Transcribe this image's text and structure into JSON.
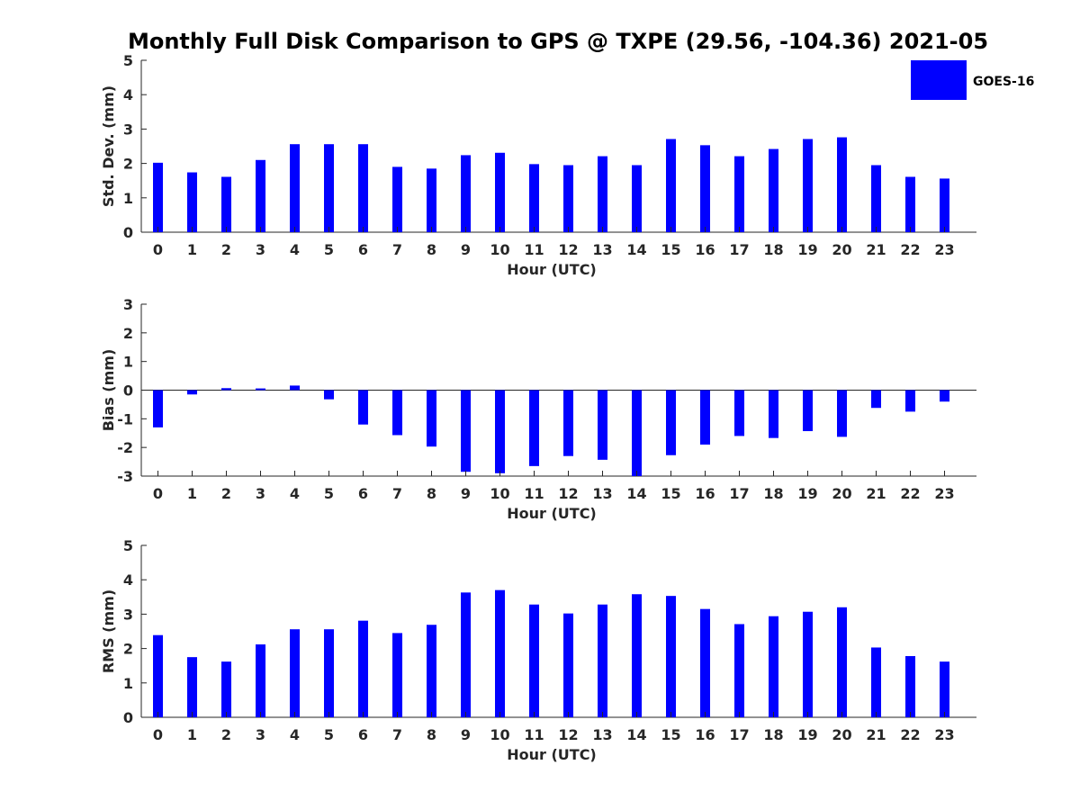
{
  "title": "Monthly Full Disk Comparison to GPS @ TXPE (29.56, -104.36) 2021-05",
  "legend": {
    "label": "GOES-16",
    "color": "#0000ff",
    "position": "top-right"
  },
  "chart_data": [
    {
      "type": "bar",
      "ylabel": "Std. Dev. (mm)",
      "xlabel": "Hour (UTC)",
      "ylim": [
        0,
        5
      ],
      "yticks": [
        0,
        1,
        2,
        3,
        4,
        5
      ],
      "categories": [
        "0",
        "1",
        "2",
        "3",
        "4",
        "5",
        "6",
        "7",
        "8",
        "9",
        "10",
        "11",
        "12",
        "13",
        "14",
        "15",
        "16",
        "17",
        "18",
        "19",
        "20",
        "21",
        "22",
        "23"
      ],
      "series": [
        {
          "name": "GOES-16",
          "color": "#0000ff",
          "values": [
            2.02,
            1.74,
            1.61,
            2.1,
            2.56,
            2.56,
            2.56,
            1.9,
            1.85,
            2.24,
            2.31,
            1.98,
            1.95,
            2.21,
            1.95,
            2.71,
            2.53,
            2.21,
            2.42,
            2.71,
            2.76,
            1.95,
            1.61,
            1.56
          ]
        }
      ],
      "grid": false,
      "legend": true
    },
    {
      "type": "bar",
      "ylabel": "Bias (mm)",
      "xlabel": "Hour (UTC)",
      "ylim": [
        -3,
        3
      ],
      "yticks": [
        -3,
        -2,
        -1,
        0,
        1,
        2,
        3
      ],
      "categories": [
        "0",
        "1",
        "2",
        "3",
        "4",
        "5",
        "6",
        "7",
        "8",
        "9",
        "10",
        "11",
        "12",
        "13",
        "14",
        "15",
        "16",
        "17",
        "18",
        "19",
        "20",
        "21",
        "22",
        "23"
      ],
      "series": [
        {
          "name": "GOES-16",
          "color": "#0000ff",
          "values": [
            -1.3,
            -0.15,
            0.07,
            0.06,
            0.16,
            -0.32,
            -1.2,
            -1.57,
            -1.97,
            -2.85,
            -2.9,
            -2.65,
            -2.3,
            -2.43,
            -3.0,
            -2.27,
            -1.9,
            -1.6,
            -1.67,
            -1.43,
            -1.63,
            -0.62,
            -0.75,
            -0.4
          ]
        }
      ],
      "grid": false,
      "legend": false
    },
    {
      "type": "bar",
      "ylabel": "RMS (mm)",
      "xlabel": "Hour (UTC)",
      "ylim": [
        0,
        5
      ],
      "yticks": [
        0,
        1,
        2,
        3,
        4,
        5
      ],
      "categories": [
        "0",
        "1",
        "2",
        "3",
        "4",
        "5",
        "6",
        "7",
        "8",
        "9",
        "10",
        "11",
        "12",
        "13",
        "14",
        "15",
        "16",
        "17",
        "18",
        "19",
        "20",
        "21",
        "22",
        "23"
      ],
      "series": [
        {
          "name": "GOES-16",
          "color": "#0000ff",
          "values": [
            2.39,
            1.75,
            1.62,
            2.12,
            2.56,
            2.56,
            2.81,
            2.45,
            2.69,
            3.63,
            3.7,
            3.28,
            3.02,
            3.28,
            3.58,
            3.53,
            3.15,
            2.71,
            2.94,
            3.07,
            3.2,
            2.03,
            1.78,
            1.62
          ]
        }
      ],
      "grid": false,
      "legend": false
    }
  ]
}
